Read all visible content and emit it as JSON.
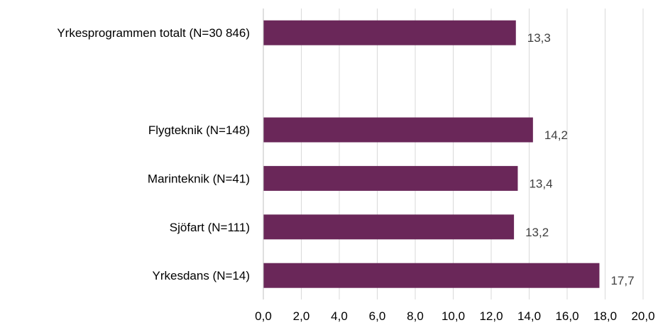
{
  "chart_data": {
    "type": "bar",
    "orientation": "horizontal",
    "title": "",
    "xlabel": "",
    "ylabel": "",
    "categories": [
      "Yrkesprogrammen totalt (N=30 846)",
      "",
      "Flygteknik (N=148)",
      "Marinteknik (N=41)",
      "Sjöfart (N=111)",
      "Yrkesdans (N=14)"
    ],
    "values": [
      13.3,
      null,
      14.2,
      13.4,
      13.2,
      17.7
    ],
    "data_labels": [
      "13,3",
      "",
      "14,2",
      "13,4",
      "13,2",
      "17,7"
    ],
    "xlim": [
      0,
      20
    ],
    "x_ticks": [
      0,
      2,
      4,
      6,
      8,
      10,
      12,
      14,
      16,
      18,
      20
    ],
    "x_tick_labels": [
      "0,0",
      "2,0",
      "4,0",
      "6,0",
      "8,0",
      "10,0",
      "12,0",
      "14,0",
      "16,0",
      "18,0",
      "20,0"
    ],
    "grid": true,
    "legend": "none",
    "bar_color": "#6a2759"
  }
}
